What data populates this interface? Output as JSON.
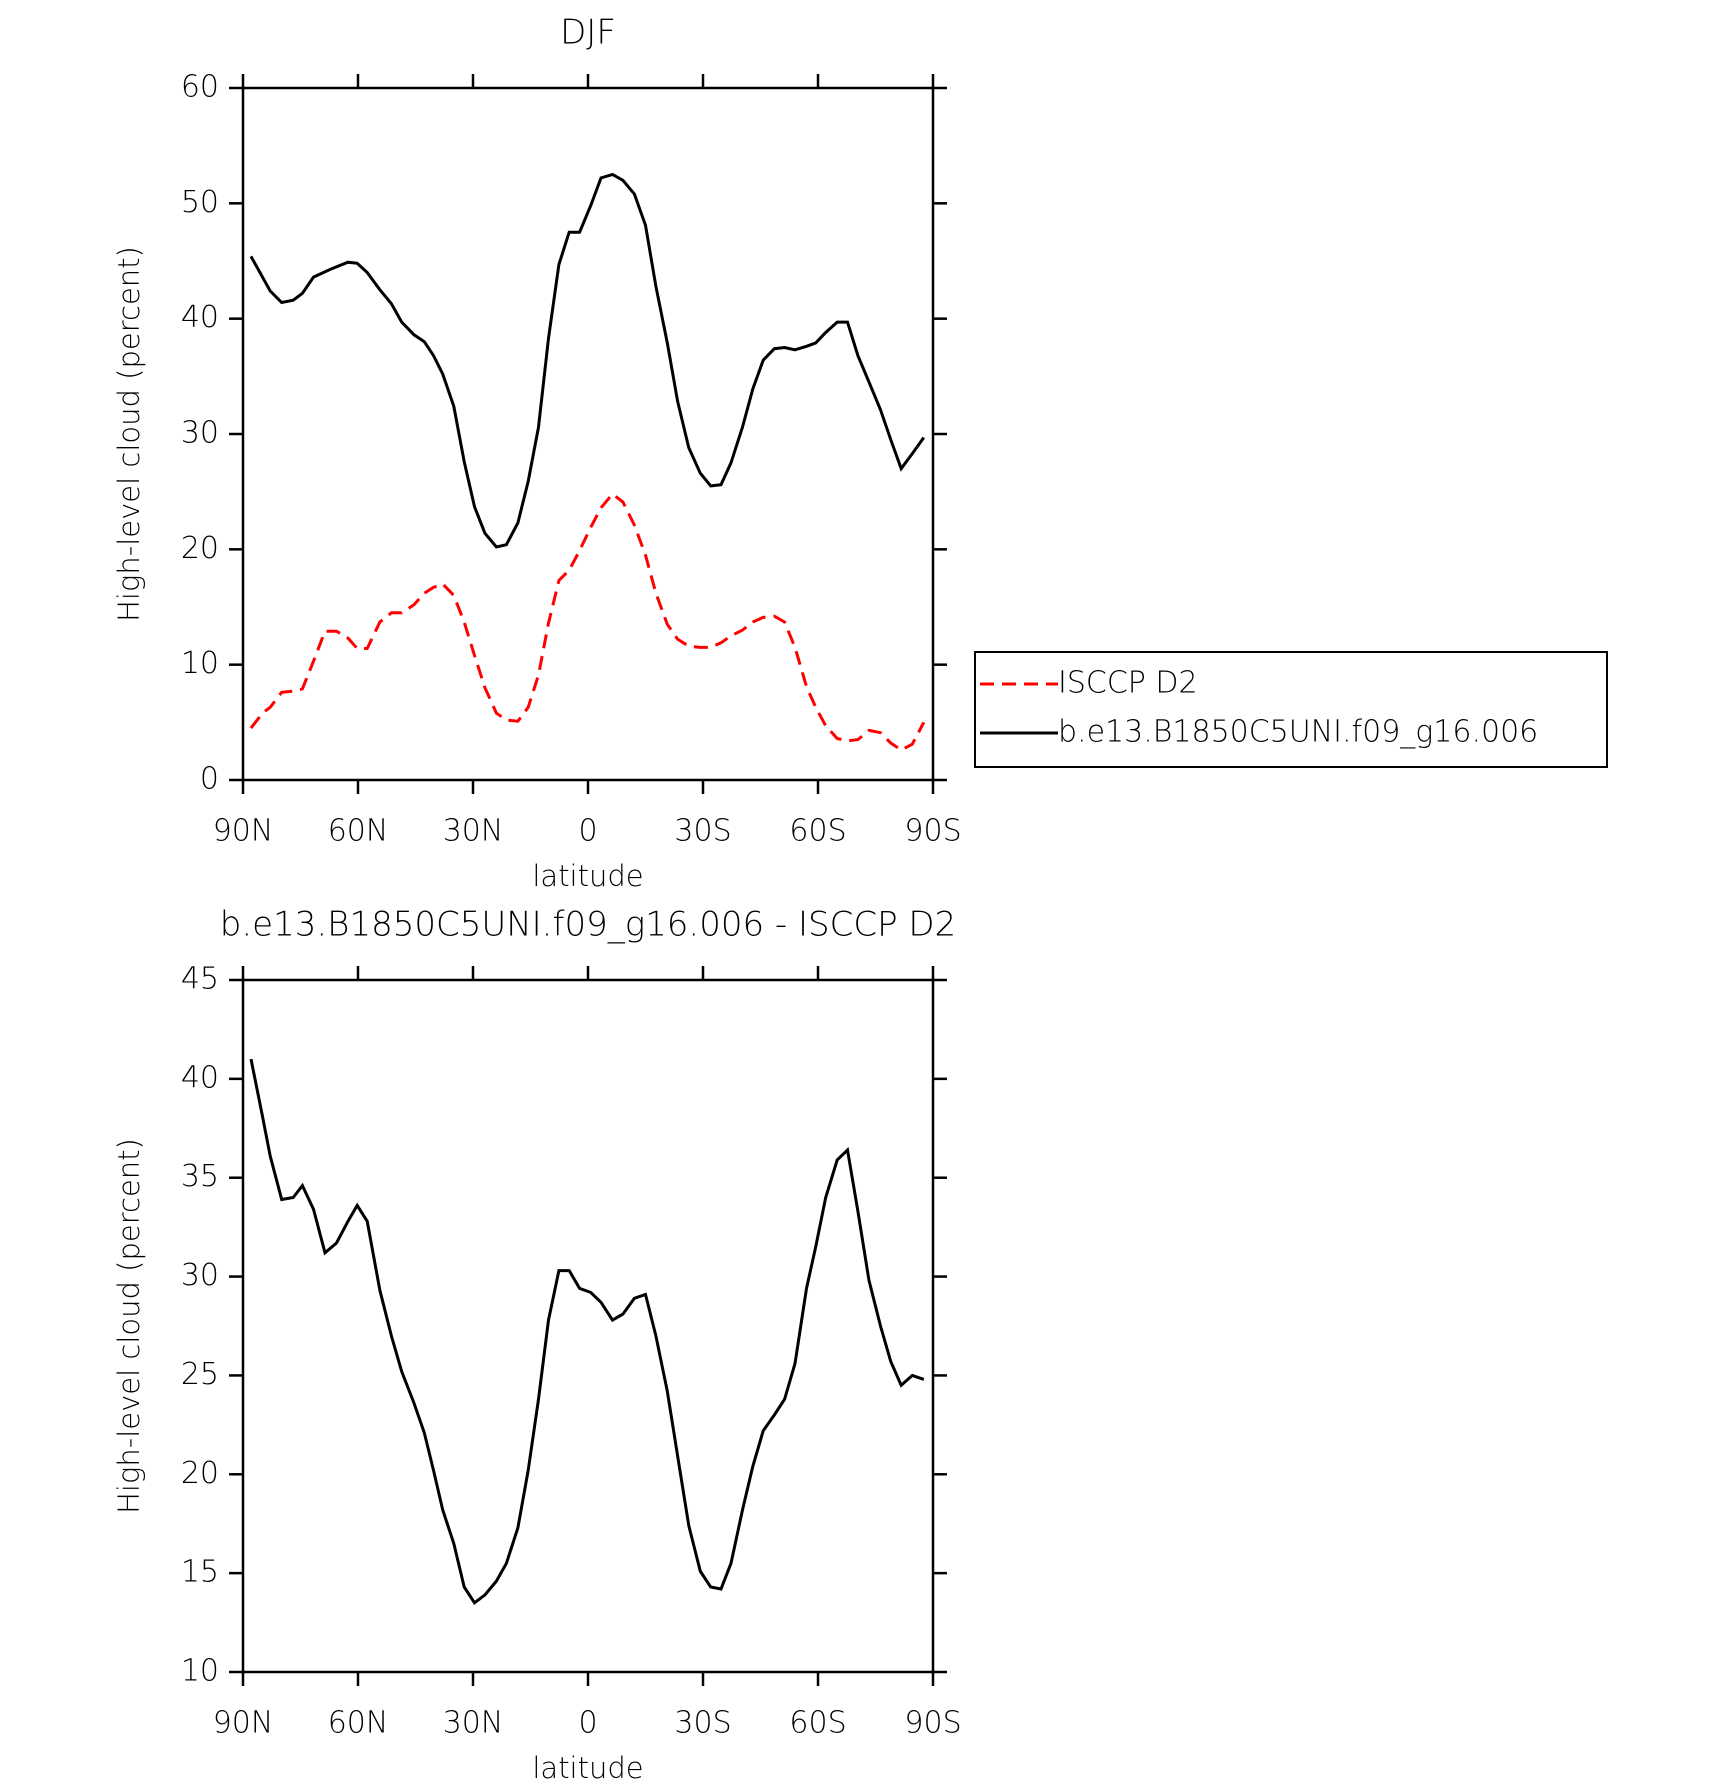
{
  "chart_data": [
    {
      "type": "line",
      "title": "DJF",
      "xlabel": "latitude",
      "ylabel": "High-level cloud (percent)",
      "xlim": [
        90,
        -90
      ],
      "xticks": [
        {
          "value": 90,
          "label": "90N"
        },
        {
          "value": 60,
          "label": "60N"
        },
        {
          "value": 30,
          "label": "30N"
        },
        0,
        {
          "value": -30,
          "label": "30S"
        },
        {
          "value": -60,
          "label": "60S"
        },
        {
          "value": -90,
          "label": "90S"
        }
      ],
      "ylim": [
        0,
        60
      ],
      "yticks": [
        0,
        10,
        20,
        30,
        40,
        50,
        60
      ],
      "legend": "outside right",
      "series": [
        {
          "name": "ISCCP D2",
          "color": "#ff0000",
          "line_style": "dashed",
          "x": [
            87.9,
            84.9,
            82.9,
            79.9,
            76.9,
            74.5,
            71.6,
            68.6,
            65.6,
            62.6,
            60.2,
            57.6,
            54.3,
            51.3,
            48.6,
            45.4,
            42.7,
            40.3,
            37.9,
            35.0,
            32.3,
            29.6,
            26.9,
            23.9,
            21.3,
            18.3,
            15.6,
            12.9,
            10.3,
            7.6,
            4.9,
            2.2,
            -0.7,
            -3.4,
            -6.4,
            -9.1,
            -12.1,
            -15.0,
            -17.7,
            -20.7,
            -23.4,
            -26.3,
            -29.3,
            -32.0,
            -34.7,
            -37.3,
            -40.3,
            -43.0,
            -45.7,
            -48.6,
            -51.3,
            -54.0,
            -57.0,
            -59.4,
            -62.0,
            -65.0,
            -67.7,
            -70.4,
            -73.3,
            -76.3,
            -79.0,
            -81.7,
            -84.6,
            -87.6
          ],
          "values": [
            4.5,
            5.8,
            6.3,
            7.6,
            7.7,
            7.9,
            10.3,
            12.9,
            12.9,
            12.3,
            11.4,
            11.4,
            13.7,
            14.5,
            14.5,
            15.2,
            16.2,
            16.7,
            17.0,
            16.0,
            13.7,
            10.8,
            8.0,
            5.8,
            5.2,
            5.1,
            6.3,
            9.1,
            13.6,
            17.3,
            18.2,
            19.9,
            21.9,
            23.6,
            24.8,
            24.1,
            22.1,
            19.5,
            16.2,
            13.5,
            12.2,
            11.6,
            11.5,
            11.5,
            11.9,
            12.5,
            13.0,
            13.7,
            14.1,
            14.2,
            13.7,
            11.5,
            8.1,
            6.3,
            4.7,
            3.6,
            3.4,
            3.5,
            4.3,
            4.1,
            3.2,
            2.6,
            3.1,
            5.0
          ]
        },
        {
          "name": "b.e13.B1850C5UNI.f09_g16.006",
          "color": "#000000",
          "line_style": "solid",
          "x": [
            87.9,
            82.9,
            79.9,
            76.9,
            74.5,
            71.6,
            67.1,
            62.6,
            60.2,
            57.6,
            54.3,
            51.3,
            48.6,
            45.4,
            42.7,
            40.3,
            37.9,
            35.0,
            32.3,
            29.6,
            26.9,
            23.9,
            21.3,
            18.3,
            15.6,
            12.9,
            10.3,
            7.6,
            4.9,
            2.2,
            -0.7,
            -3.4,
            -6.4,
            -9.1,
            -12.1,
            -15.0,
            -17.7,
            -20.7,
            -23.4,
            -26.3,
            -29.3,
            -32.0,
            -34.7,
            -37.3,
            -40.3,
            -43.0,
            -45.7,
            -48.6,
            -51.3,
            -54.0,
            -57.0,
            -59.4,
            -62.0,
            -65.0,
            -67.7,
            -70.4,
            -73.3,
            -76.3,
            -79.0,
            -81.7,
            -84.6,
            -87.6
          ],
          "values": [
            45.4,
            42.4,
            41.4,
            41.6,
            42.2,
            43.6,
            44.3,
            44.9,
            44.8,
            44.0,
            42.5,
            41.3,
            39.7,
            38.6,
            38.0,
            36.8,
            35.2,
            32.4,
            27.6,
            23.7,
            21.4,
            20.2,
            20.4,
            22.3,
            25.9,
            30.6,
            38.3,
            44.7,
            47.5,
            47.5,
            49.8,
            52.2,
            52.5,
            52.0,
            50.8,
            48.1,
            42.8,
            37.9,
            32.8,
            28.8,
            26.6,
            25.5,
            25.6,
            27.5,
            30.6,
            33.9,
            36.4,
            37.4,
            37.5,
            37.3,
            37.6,
            37.9,
            38.8,
            39.7,
            39.7,
            36.8,
            34.5,
            32.1,
            29.5,
            27.0,
            28.3,
            29.7
          ]
        }
      ]
    },
    {
      "type": "line",
      "title": "b.e13.B1850C5UNI.f09_g16.006 - ISCCP D2",
      "xlabel": "latitude",
      "ylabel": "High-level cloud (percent)",
      "xlim": [
        90,
        -90
      ],
      "xticks": [
        {
          "value": 90,
          "label": "90N"
        },
        {
          "value": 60,
          "label": "60N"
        },
        {
          "value": 30,
          "label": "30N"
        },
        0,
        {
          "value": -30,
          "label": "30S"
        },
        {
          "value": -60,
          "label": "60S"
        },
        {
          "value": -90,
          "label": "90S"
        }
      ],
      "ylim": [
        10,
        45
      ],
      "yticks": [
        10,
        15,
        20,
        25,
        30,
        35,
        40,
        45
      ],
      "series": [
        {
          "color": "#000000",
          "line_style": "solid",
          "x": [
            87.9,
            84.9,
            82.9,
            79.9,
            76.9,
            74.5,
            71.6,
            68.6,
            65.6,
            62.6,
            60.2,
            57.6,
            54.3,
            51.3,
            48.6,
            45.4,
            42.7,
            40.3,
            37.9,
            35.0,
            32.3,
            29.6,
            26.9,
            23.9,
            21.3,
            18.3,
            15.6,
            12.9,
            10.3,
            7.6,
            4.9,
            2.2,
            -0.7,
            -3.4,
            -6.4,
            -9.1,
            -12.1,
            -15.0,
            -17.7,
            -20.7,
            -23.4,
            -26.3,
            -29.3,
            -32.0,
            -34.7,
            -37.3,
            -40.3,
            -43.0,
            -45.7,
            -48.6,
            -51.3,
            -54.0,
            -57.0,
            -59.4,
            -62.0,
            -65.0,
            -67.7,
            -70.4,
            -73.3,
            -76.3,
            -79.0,
            -81.7,
            -84.6,
            -87.6
          ],
          "values": [
            41.0,
            38.1,
            36.1,
            33.9,
            34.0,
            34.6,
            33.4,
            31.2,
            31.7,
            32.8,
            33.6,
            32.8,
            29.3,
            27.0,
            25.2,
            23.6,
            22.1,
            20.2,
            18.2,
            16.5,
            14.3,
            13.5,
            13.9,
            14.6,
            15.5,
            17.3,
            20.2,
            23.8,
            27.8,
            30.3,
            30.3,
            29.4,
            29.2,
            28.7,
            27.8,
            28.1,
            28.9,
            29.1,
            27.0,
            24.2,
            20.9,
            17.4,
            15.1,
            14.3,
            14.2,
            15.5,
            18.2,
            20.4,
            22.2,
            23.0,
            23.8,
            25.6,
            29.4,
            31.5,
            34.0,
            35.9,
            36.4,
            33.3,
            29.8,
            27.5,
            25.7,
            24.5,
            25.0,
            24.8
          ]
        }
      ]
    }
  ]
}
